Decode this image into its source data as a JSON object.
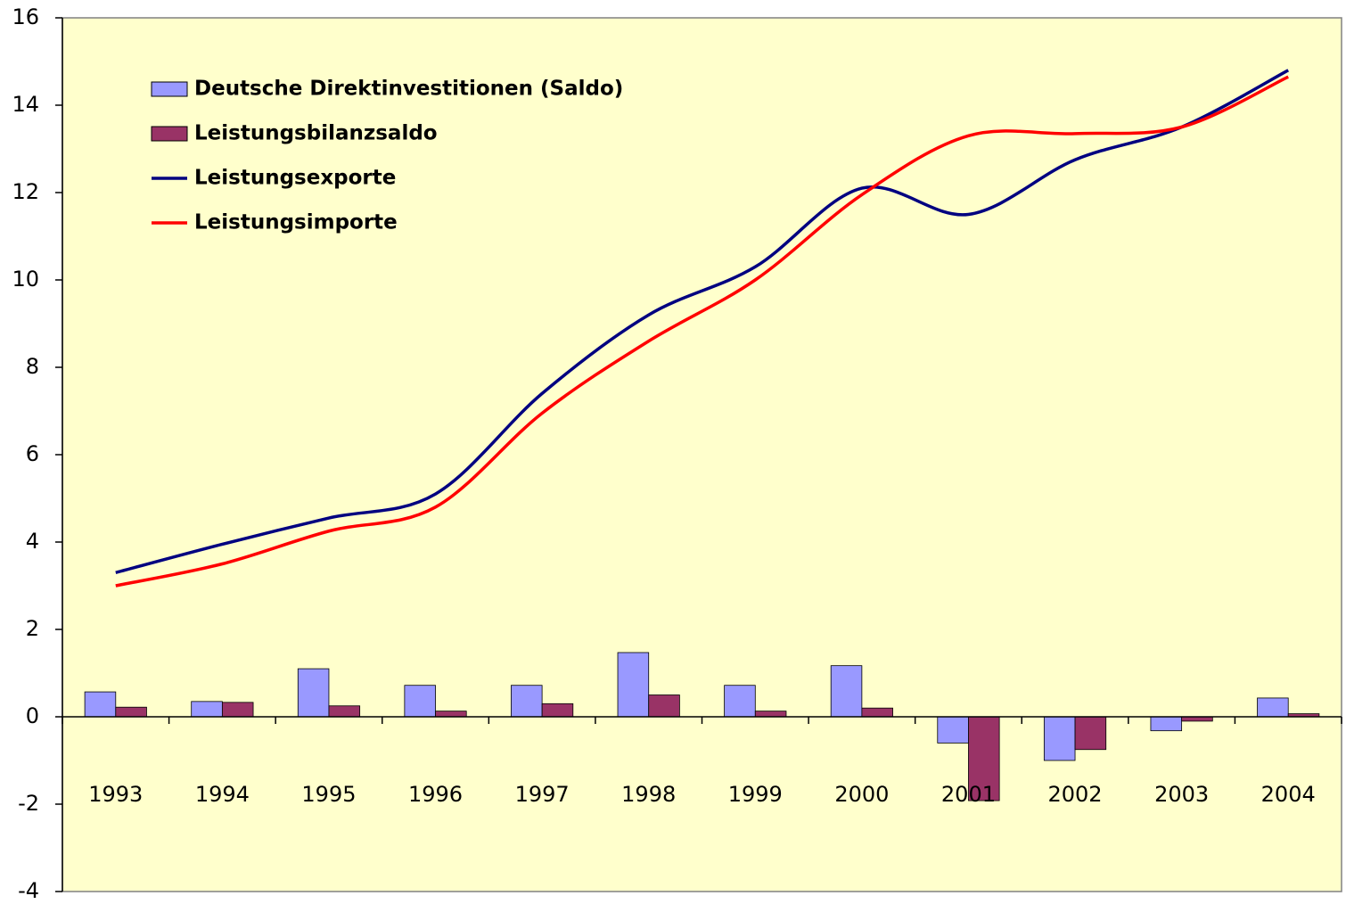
{
  "chart_data": {
    "type": "bar",
    "categories": [
      "1993",
      "1994",
      "1995",
      "1996",
      "1997",
      "1998",
      "1999",
      "2000",
      "2001",
      "2002",
      "2003",
      "2004"
    ],
    "series": [
      {
        "name": "Deutsche Direktinvestitionen (Saldo)",
        "type": "bar",
        "color": "#9999ff",
        "values": [
          0.57,
          0.35,
          1.1,
          0.72,
          0.72,
          1.47,
          0.72,
          1.17,
          -0.6,
          -1.0,
          -0.32,
          0.43
        ]
      },
      {
        "name": "Leistungsbilanzsaldo",
        "type": "bar",
        "color": "#993366",
        "values": [
          0.22,
          0.33,
          0.25,
          0.13,
          0.3,
          0.5,
          0.13,
          0.2,
          -1.92,
          -0.75,
          -0.1,
          0.07
        ]
      },
      {
        "name": "Leistungsexporte",
        "type": "line",
        "color": "#000080",
        "values": [
          3.3,
          3.95,
          4.55,
          5.1,
          7.4,
          9.2,
          10.3,
          12.1,
          11.5,
          12.75,
          13.5,
          14.8
        ]
      },
      {
        "name": "Leistungsimporte",
        "type": "line",
        "color": "#ff0000",
        "values": [
          3.0,
          3.5,
          4.25,
          4.8,
          6.95,
          8.6,
          10.0,
          11.95,
          13.3,
          13.35,
          13.5,
          14.65
        ]
      }
    ],
    "ylim": [
      -4,
      16
    ],
    "yticks": [
      -4,
      -2,
      0,
      2,
      4,
      6,
      8,
      10,
      12,
      14,
      16
    ],
    "legend": "upper left",
    "background": "#ffffcc"
  }
}
